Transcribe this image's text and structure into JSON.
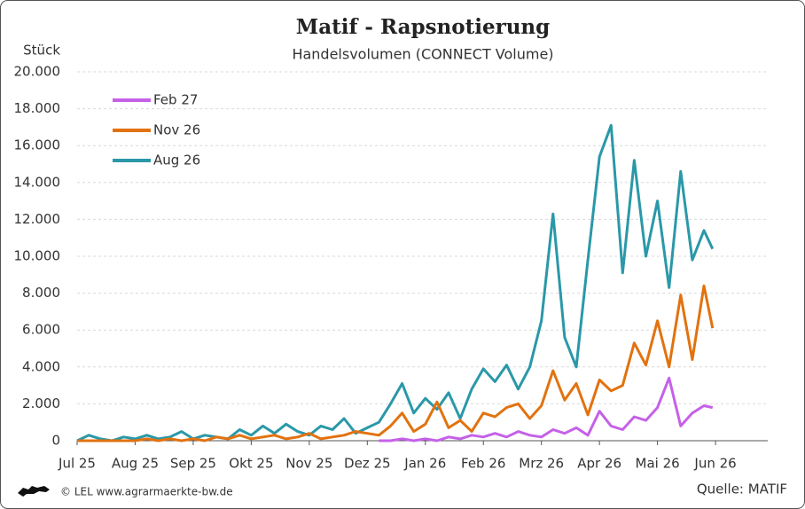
{
  "chart_data": {
    "type": "line",
    "title": "Matif - Rapsnotierung",
    "subtitle": "Handelsvolumen (CONNECT Volume)",
    "y_label": "Stück",
    "source": "Quelle: MATIF",
    "footer": "© LEL www.agrarmaerkte-bw.de",
    "grid": true,
    "legend": "upper-left",
    "xlim": [
      0,
      11.9
    ],
    "xticks": [
      {
        "value": 0,
        "label": "Jul 25"
      },
      {
        "value": 1,
        "label": "Aug 25"
      },
      {
        "value": 2,
        "label": "Sep 25"
      },
      {
        "value": 3,
        "label": "Okt 25"
      },
      {
        "value": 4,
        "label": "Nov 25"
      },
      {
        "value": 5,
        "label": "Dez 25"
      },
      {
        "value": 6,
        "label": "Jan 26"
      },
      {
        "value": 7,
        "label": "Feb 26"
      },
      {
        "value": 8,
        "label": "Mrz 26"
      },
      {
        "value": 9,
        "label": "Apr 26"
      },
      {
        "value": 10,
        "label": "Mai 26"
      },
      {
        "value": 11,
        "label": "Jun 26"
      }
    ],
    "ylim": [
      0,
      20000
    ],
    "yticks": [
      0,
      {
        "value": 2000,
        "label": "2.000"
      },
      {
        "value": 4000,
        "label": "4.000"
      },
      {
        "value": 6000,
        "label": "6.000"
      },
      {
        "value": 8000,
        "label": "8.000"
      },
      {
        "value": 10000,
        "label": "10.000"
      },
      {
        "value": 12000,
        "label": "12.000"
      },
      {
        "value": 14000,
        "label": "14.000"
      },
      {
        "value": 16000,
        "label": "16.000"
      },
      {
        "value": 18000,
        "label": "18.000"
      },
      {
        "value": 20000,
        "label": "20.000"
      }
    ],
    "x": [
      0,
      0.2,
      0.4,
      0.6,
      0.8,
      1.0,
      1.2,
      1.4,
      1.6,
      1.8,
      2.0,
      2.2,
      2.4,
      2.6,
      2.8,
      3.0,
      3.2,
      3.4,
      3.6,
      3.8,
      4.0,
      4.2,
      4.4,
      4.6,
      4.8,
      5.0,
      5.2,
      5.4,
      5.6,
      5.8,
      6.0,
      6.2,
      6.4,
      6.6,
      6.8,
      7.0,
      7.2,
      7.4,
      7.6,
      7.8,
      8.0,
      8.2,
      8.4,
      8.6,
      8.8,
      9.0,
      9.2,
      9.4,
      9.6,
      9.8,
      10.0,
      10.2,
      10.4,
      10.6,
      10.8,
      10.95
    ],
    "series": [
      {
        "name": "Feb 27",
        "color": "#c561e8",
        "values": [
          null,
          null,
          null,
          null,
          null,
          null,
          null,
          null,
          null,
          null,
          null,
          null,
          null,
          null,
          null,
          null,
          null,
          null,
          null,
          null,
          null,
          null,
          null,
          null,
          null,
          null,
          0,
          0,
          100,
          0,
          100,
          0,
          200,
          100,
          300,
          200,
          400,
          200,
          500,
          300,
          200,
          600,
          400,
          700,
          300,
          1600,
          800,
          600,
          1300,
          1100,
          1800,
          3400,
          800,
          1500,
          1900,
          1800
        ]
      },
      {
        "name": "Nov 26",
        "color": "#e2720f",
        "values": [
          0,
          0,
          0,
          0,
          0,
          0,
          100,
          0,
          100,
          0,
          100,
          0,
          200,
          100,
          300,
          100,
          200,
          300,
          100,
          200,
          400,
          100,
          200,
          300,
          500,
          400,
          300,
          800,
          1500,
          500,
          900,
          2100,
          700,
          1100,
          500,
          1500,
          1300,
          1800,
          2000,
          1200,
          1900,
          3800,
          2200,
          3100,
          1400,
          3300,
          2700,
          3000,
          5300,
          4100,
          6500,
          4000,
          7900,
          4400,
          8400,
          6100
        ]
      },
      {
        "name": "Aug 26",
        "color": "#2a98a8",
        "values": [
          0,
          300,
          100,
          0,
          200,
          100,
          300,
          100,
          200,
          500,
          100,
          300,
          200,
          100,
          600,
          300,
          800,
          400,
          900,
          500,
          300,
          800,
          600,
          1200,
          400,
          700,
          1000,
          2000,
          3100,
          1500,
          2300,
          1700,
          2600,
          1200,
          2800,
          3900,
          3200,
          4100,
          2800,
          4000,
          6500,
          12300,
          5600,
          4000,
          9800,
          15400,
          17100,
          9100,
          15200,
          10000,
          13000,
          8300,
          14600,
          9800,
          11400,
          10400
        ]
      }
    ]
  }
}
